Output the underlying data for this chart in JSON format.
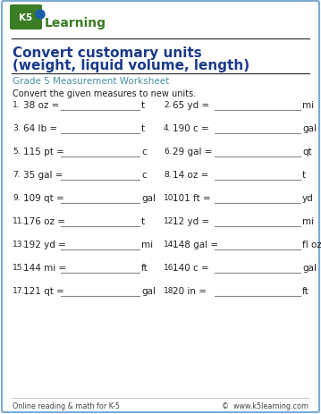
{
  "title_line1": "Convert customary units",
  "title_line2": "(weight, liquid volume, length)",
  "subtitle": "Grade 5 Measurement Worksheet",
  "instruction": "Convert the given measures to new units.",
  "problems": [
    {
      "num": "1.",
      "left": "38 oz =",
      "unit": "t"
    },
    {
      "num": "2.",
      "left": "65 yd =",
      "unit": "mi"
    },
    {
      "num": "3.",
      "left": "64 lb =",
      "unit": "t"
    },
    {
      "num": "4.",
      "left": "190 c =",
      "unit": "gal"
    },
    {
      "num": "5.",
      "left": "115 pt =",
      "unit": "c"
    },
    {
      "num": "6.",
      "left": "29 gal =",
      "unit": "qt"
    },
    {
      "num": "7.",
      "left": "35 gal =",
      "unit": "c"
    },
    {
      "num": "8.",
      "left": "14 oz =",
      "unit": "t"
    },
    {
      "num": "9.",
      "left": "109 qt =",
      "unit": "gal"
    },
    {
      "num": "10.",
      "left": "101 ft =",
      "unit": "yd"
    },
    {
      "num": "11.",
      "left": "176 oz =",
      "unit": "t"
    },
    {
      "num": "12.",
      "left": "12 yd =",
      "unit": "mi"
    },
    {
      "num": "13.",
      "left": "192 yd =",
      "unit": "mi"
    },
    {
      "num": "14.",
      "left": "148 gal =",
      "unit": "fl oz"
    },
    {
      "num": "15.",
      "left": "144 mi =",
      "unit": "ft"
    },
    {
      "num": "16.",
      "left": "140 c =",
      "unit": "gal"
    },
    {
      "num": "17.",
      "left": "121 qt =",
      "unit": "gal"
    },
    {
      "num": "18.",
      "left": "20 in =",
      "unit": "ft"
    }
  ],
  "footer_left": "Online reading & math for K-5",
  "footer_right": "©  www.k5learning.com",
  "bg_color": "#ffffff",
  "border_color": "#7bacd4",
  "title_color": "#1a3a8a",
  "subtitle_color": "#4a90a4",
  "text_color": "#222222",
  "line_color": "#888888",
  "footer_color": "#444444",
  "logo_green": "#3a7d24",
  "logo_blue": "#1a5fa8"
}
